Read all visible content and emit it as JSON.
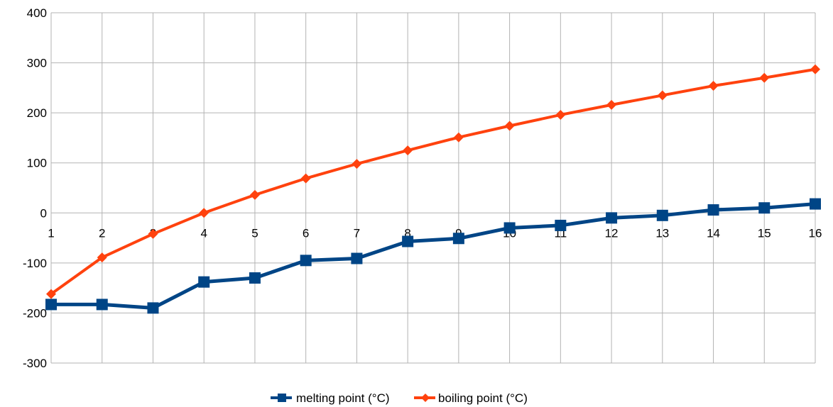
{
  "chart_data": {
    "type": "line",
    "title": "",
    "xlabel": "",
    "ylabel": "",
    "categories": [
      "1",
      "2",
      "3",
      "4",
      "5",
      "6",
      "7",
      "8",
      "9",
      "10",
      "11",
      "12",
      "13",
      "14",
      "15",
      "16"
    ],
    "ylim": [
      -300,
      400
    ],
    "yticks": [
      400,
      300,
      200,
      100,
      0,
      -100,
      -200,
      -300
    ],
    "grid": true,
    "legend_position": "bottom",
    "series": [
      {
        "name": "melting point (°C)",
        "color": "#004586",
        "marker": "square",
        "values": [
          -183,
          -183,
          -190,
          -138,
          -130,
          -95,
          -91,
          -57,
          -51,
          -30,
          -25,
          -10,
          -5,
          6,
          10,
          18
        ]
      },
      {
        "name": "boiling point (°C)",
        "color": "#ff420e",
        "marker": "diamond",
        "values": [
          -162,
          -89,
          -42,
          0,
          36,
          69,
          98,
          125,
          151,
          174,
          196,
          216,
          235,
          254,
          270,
          287
        ]
      }
    ]
  }
}
